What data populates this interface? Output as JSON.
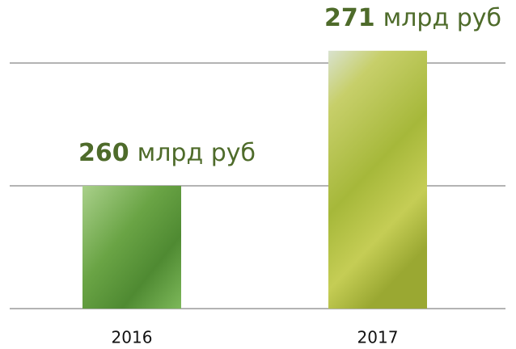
{
  "chart_data": {
    "type": "bar",
    "categories": [
      "2016",
      "2017"
    ],
    "values": [
      260,
      271
    ],
    "value_labels": [
      "260",
      "271"
    ],
    "value_unit": "млрд руб",
    "ylim": [
      250,
      272
    ],
    "yticks": [
      250,
      260,
      270
    ],
    "grid": true
  }
}
